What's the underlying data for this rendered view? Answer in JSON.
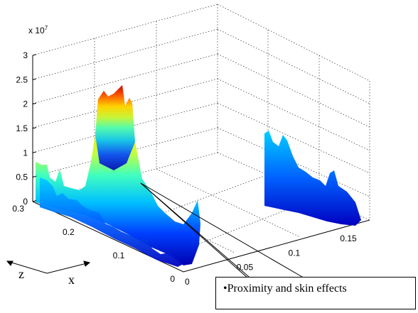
{
  "chart_data": {
    "type": "surface",
    "multiplier": "x 10",
    "multiplier_exp": "7",
    "z_ticks": [
      {
        "value": 0,
        "label": "0"
      },
      {
        "value": 0.5,
        "label": "0.5"
      },
      {
        "value": 1,
        "label": "1"
      },
      {
        "value": 1.5,
        "label": "1.5"
      },
      {
        "value": 2,
        "label": "2"
      },
      {
        "value": 2.5,
        "label": "2.5"
      },
      {
        "value": 3,
        "label": "3"
      }
    ],
    "z_axis_ticks": [
      {
        "value": 0,
        "label": "0"
      },
      {
        "value": 0.1,
        "label": "0.1"
      },
      {
        "value": 0.2,
        "label": "0.2"
      },
      {
        "value": 0.3,
        "label": "0.3"
      }
    ],
    "x_axis_ticks": [
      {
        "value": 0,
        "label": "0"
      },
      {
        "value": 0.05,
        "label": "0.05"
      },
      {
        "value": 0.1,
        "label": "0.1"
      },
      {
        "value": 0.15,
        "label": "0.15"
      }
    ],
    "x_ticks_near": [
      {
        "value": 0,
        "label": "0"
      }
    ],
    "ylim": [
      0,
      3
    ],
    "peak_region": {
      "max_value": 2.3
    },
    "right_region": {
      "max_value": 1.4
    },
    "colormap": "jet"
  },
  "annotation": {
    "text": "•Proximity and skin effects"
  },
  "axis_indicator": {
    "z_label": "z",
    "x_label": "x"
  }
}
